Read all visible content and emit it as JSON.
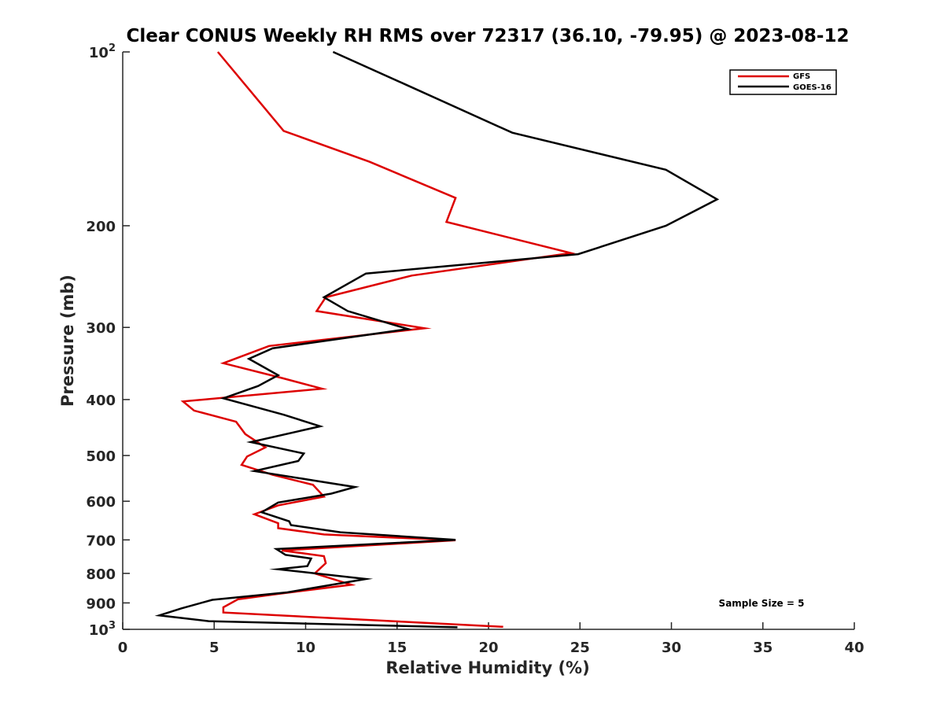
{
  "chart_data": {
    "type": "line",
    "title": "Clear CONUS Weekly RH RMS over 72317 (36.10, -79.95) @ 2023-08-12",
    "xlabel": "Relative Humidity (%)",
    "ylabel": "Pressure (mb)",
    "xlim": [
      0,
      40
    ],
    "ylim": [
      100,
      1000
    ],
    "y_scale": "log",
    "y_direction": "reversed",
    "x_ticks": [
      0,
      5,
      10,
      15,
      20,
      25,
      30,
      35,
      40
    ],
    "x_tick_labels": [
      "0",
      "5",
      "10",
      "15",
      "20",
      "25",
      "30",
      "35",
      "40"
    ],
    "y_ticks": [
      100,
      200,
      300,
      400,
      500,
      600,
      700,
      800,
      900,
      1000
    ],
    "y_tick_labels": [
      {
        "base": "10",
        "exp": "2"
      },
      {
        "base": "200",
        "exp": ""
      },
      {
        "base": "300",
        "exp": ""
      },
      {
        "base": "400",
        "exp": ""
      },
      {
        "base": "500",
        "exp": ""
      },
      {
        "base": "600",
        "exp": ""
      },
      {
        "base": "700",
        "exp": ""
      },
      {
        "base": "800",
        "exp": ""
      },
      {
        "base": "900",
        "exp": ""
      },
      {
        "base": "10",
        "exp": "3"
      }
    ],
    "grid": false,
    "legend_position": "top-right",
    "annotation": "Sample Size = 5",
    "series": [
      {
        "name": "GFS",
        "color": "#dd0000",
        "points": [
          [
            5.2,
            100
          ],
          [
            8.8,
            137
          ],
          [
            13.5,
            155
          ],
          [
            18.2,
            179
          ],
          [
            17.7,
            197
          ],
          [
            24.5,
            223
          ],
          [
            15.8,
            244
          ],
          [
            11.1,
            266
          ],
          [
            10.6,
            281
          ],
          [
            16.5,
            301
          ],
          [
            8.0,
            323
          ],
          [
            5.5,
            346
          ],
          [
            8.7,
            367
          ],
          [
            10.9,
            383
          ],
          [
            3.3,
            403
          ],
          [
            3.9,
            418
          ],
          [
            6.2,
            437
          ],
          [
            6.7,
            459
          ],
          [
            7.8,
            484
          ],
          [
            6.8,
            502
          ],
          [
            6.5,
            519
          ],
          [
            8.2,
            540
          ],
          [
            10.4,
            562
          ],
          [
            11.0,
            589
          ],
          [
            8.5,
            610
          ],
          [
            7.2,
            632
          ],
          [
            8.5,
            655
          ],
          [
            8.5,
            668
          ],
          [
            11.0,
            685
          ],
          [
            18.2,
            701
          ],
          [
            8.7,
            730
          ],
          [
            11.0,
            747
          ],
          [
            11.1,
            768
          ],
          [
            10.5,
            800
          ],
          [
            12.5,
            837
          ],
          [
            8.4,
            869
          ],
          [
            6.3,
            887
          ],
          [
            5.5,
            916
          ],
          [
            5.5,
            935
          ],
          [
            20.8,
            990
          ]
        ]
      },
      {
        "name": "GOES-16",
        "color": "#000000",
        "points": [
          [
            11.5,
            100
          ],
          [
            15.5,
            114
          ],
          [
            21.3,
            138
          ],
          [
            29.7,
            160
          ],
          [
            32.5,
            180
          ],
          [
            29.7,
            200
          ],
          [
            24.9,
            224
          ],
          [
            13.3,
            242
          ],
          [
            11.0,
            266
          ],
          [
            12.3,
            281
          ],
          [
            15.6,
            302
          ],
          [
            8.2,
            326
          ],
          [
            6.9,
            340
          ],
          [
            8.5,
            363
          ],
          [
            7.4,
            379
          ],
          [
            5.5,
            398
          ],
          [
            8.8,
            425
          ],
          [
            10.8,
            445
          ],
          [
            7.0,
            474
          ],
          [
            9.9,
            496
          ],
          [
            9.6,
            511
          ],
          [
            7.2,
            532
          ],
          [
            10.4,
            552
          ],
          [
            12.7,
            567
          ],
          [
            11.4,
            582
          ],
          [
            8.5,
            603
          ],
          [
            7.6,
            627
          ],
          [
            9.1,
            650
          ],
          [
            9.2,
            660
          ],
          [
            11.9,
            679
          ],
          [
            18.2,
            700
          ],
          [
            8.4,
            726
          ],
          [
            8.9,
            743
          ],
          [
            10.3,
            754
          ],
          [
            10.1,
            777
          ],
          [
            8.5,
            787
          ],
          [
            13.3,
            818
          ],
          [
            9.0,
            863
          ],
          [
            4.9,
            889
          ],
          [
            3.2,
            920
          ],
          [
            2.0,
            946
          ],
          [
            4.7,
            968
          ],
          [
            18.3,
            992
          ]
        ]
      }
    ]
  }
}
